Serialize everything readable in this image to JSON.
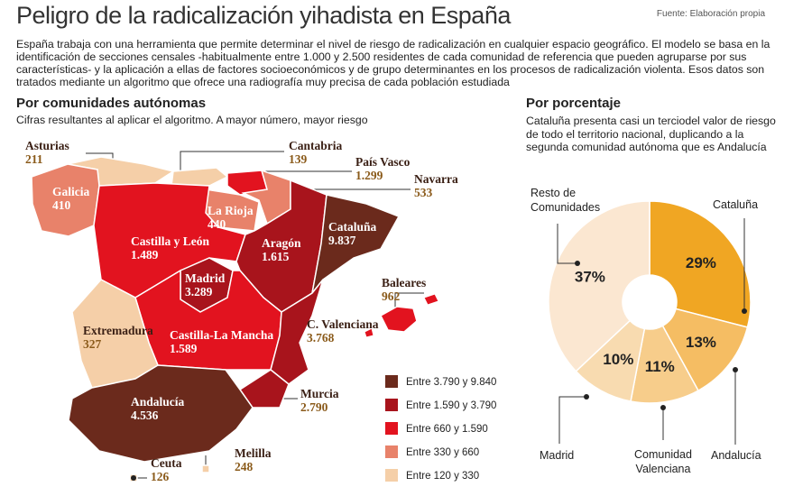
{
  "header": {
    "title": "Peligro de la radicalización yihadista en España",
    "source": "Fuente: Elaboración propia",
    "intro": "España trabaja con una herramienta que permite determinar el nivel de riesgo de radicalización en cualquier espacio geográfico. El modelo se basa en la identificación de secciones censales -habitualmente entre 1.000 y 2.500 residentes de cada comunidad de referencia que pueden agruparse por sus características- y la aplicación a ellas de factores socioeconómicos y de grupo determinantes en los procesos de radicalización violenta. Esos datos son tratados mediante un algoritmo que ofrece una radiografía muy precisa de cada población estudiada"
  },
  "map": {
    "title": "Por comunidades autónomas",
    "subtitle": "Cifras resultantes al aplicar el algoritmo. A mayor número, mayor riesgo",
    "regions": [
      {
        "name": "Asturias",
        "value": "211",
        "color": "#f5cfa8"
      },
      {
        "name": "Cantabria",
        "value": "139",
        "color": "#f5cfa8"
      },
      {
        "name": "País Vasco",
        "value": "1.299",
        "color": "#e2131f"
      },
      {
        "name": "Navarra",
        "value": "533",
        "color": "#e8826a"
      },
      {
        "name": "Galicia",
        "value": "410",
        "color": "#e8826a"
      },
      {
        "name": "La Rioja",
        "value": "440",
        "color": "#e8826a"
      },
      {
        "name": "Castilla y León",
        "value": "1.489",
        "color": "#e2131f"
      },
      {
        "name": "Aragón",
        "value": "1.615",
        "color": "#a8141c"
      },
      {
        "name": "Cataluña",
        "value": "9.837",
        "color": "#6b2a1c"
      },
      {
        "name": "Madrid",
        "value": "3.289",
        "color": "#a8141c"
      },
      {
        "name": "Castilla-La Mancha",
        "value": "1.589",
        "color": "#e2131f"
      },
      {
        "name": "Extremadura",
        "value": "327",
        "color": "#f5cfa8"
      },
      {
        "name": "C. Valenciana",
        "value": "3.768",
        "color": "#a8141c"
      },
      {
        "name": "Baleares",
        "value": "962",
        "color": "#e2131f"
      },
      {
        "name": "Murcia",
        "value": "2.790",
        "color": "#a8141c"
      },
      {
        "name": "Andalucía",
        "value": "4.536",
        "color": "#6b2a1c"
      },
      {
        "name": "Ceuta",
        "value": "126",
        "color": "#f5cfa8"
      },
      {
        "name": "Melilla",
        "value": "248",
        "color": "#f5cfa8"
      }
    ],
    "legend": [
      {
        "label": "Entre 3.790 y 9.840",
        "color": "#6b2a1c"
      },
      {
        "label": "Entre 1.590 y 3.790",
        "color": "#a8141c"
      },
      {
        "label": "Entre 660  y 1.590",
        "color": "#e2131f"
      },
      {
        "label": "Entre 330 y 660",
        "color": "#e8826a"
      },
      {
        "label": "Entre 120 y 330",
        "color": "#f5cfa8"
      }
    ]
  },
  "chart_data": {
    "type": "pie",
    "title": "Por porcentaje",
    "subtitle": "Cataluña presenta casi un terciodel valor de riesgo de todo el territorio nacional, duplicando a la segunda comunidad autónoma que es Andalucía",
    "categories": [
      "Cataluña",
      "Andalucía",
      "Comunidad Valenciana",
      "Madrid",
      "Resto de Comunidades"
    ],
    "values": [
      29,
      13,
      11,
      10,
      37
    ],
    "value_labels": [
      "29%",
      "13%",
      "11%",
      "10%",
      "37%"
    ],
    "colors": [
      "#f0a623",
      "#f5bd63",
      "#f7cd8b",
      "#f8dbb0",
      "#fbe7d1"
    ]
  }
}
